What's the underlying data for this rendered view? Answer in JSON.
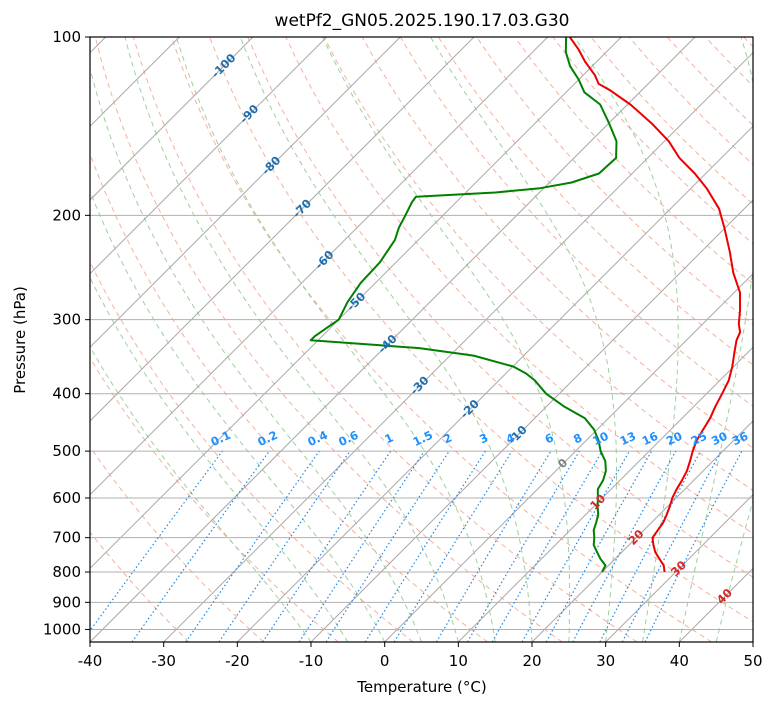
{
  "chart_data": {
    "type": "line",
    "title": "wetPf2_GN05.2025.190.17.03.G30",
    "xlabel": "Temperature (°C)",
    "ylabel": "Pressure (hPa)",
    "xlim": [
      -40,
      50
    ],
    "ylim": [
      1050,
      100
    ],
    "yscale": "log",
    "skew": "skew-T log-p (isotherms at 45°)",
    "grid": true,
    "x_ticks": [
      "-40",
      "-30",
      "-20",
      "-10",
      "0",
      "10",
      "20",
      "30",
      "40",
      "50"
    ],
    "y_ticks": [
      "100",
      "200",
      "300",
      "400",
      "500",
      "600",
      "700",
      "800",
      "900",
      "1000"
    ],
    "series": [
      {
        "color": "#ee0000",
        "points": [
          [
            800,
            28.5
          ],
          [
            780,
            27.5
          ],
          [
            760,
            26.0
          ],
          [
            740,
            24.5
          ],
          [
            720,
            23.3
          ],
          [
            700,
            22.2
          ],
          [
            680,
            21.9
          ],
          [
            660,
            21.6
          ],
          [
            640,
            21.0
          ],
          [
            620,
            20.3
          ],
          [
            600,
            19.5
          ],
          [
            580,
            18.9
          ],
          [
            560,
            18.4
          ],
          [
            540,
            17.8
          ],
          [
            520,
            16.9
          ],
          [
            500,
            15.9
          ],
          [
            480,
            15.0
          ],
          [
            460,
            14.4
          ],
          [
            440,
            13.8
          ],
          [
            420,
            12.9
          ],
          [
            400,
            12.1
          ],
          [
            380,
            11.2
          ],
          [
            360,
            9.8
          ],
          [
            340,
            8.1
          ],
          [
            325,
            6.8
          ],
          [
            315,
            6.2
          ],
          [
            305,
            4.9
          ],
          [
            290,
            3.3
          ],
          [
            270,
            0.8
          ],
          [
            250,
            -2.8
          ],
          [
            230,
            -6.2
          ],
          [
            210,
            -10.1
          ],
          [
            195,
            -13.4
          ],
          [
            180,
            -17.9
          ],
          [
            170,
            -21.5
          ],
          [
            160,
            -25.7
          ],
          [
            150,
            -29.4
          ],
          [
            140,
            -34.1
          ],
          [
            130,
            -39.6
          ],
          [
            123,
            -44.3
          ],
          [
            120,
            -46.7
          ],
          [
            116,
            -48.4
          ],
          [
            110,
            -51.6
          ],
          [
            105,
            -54.1
          ],
          [
            100,
            -57.0
          ]
        ]
      },
      {
        "color": "#008000",
        "points": [
          [
            800,
            20.0
          ],
          [
            780,
            19.6
          ],
          [
            760,
            18.0
          ],
          [
            740,
            16.6
          ],
          [
            720,
            15.2
          ],
          [
            700,
            14.3
          ],
          [
            680,
            13.2
          ],
          [
            660,
            12.5
          ],
          [
            640,
            11.7
          ],
          [
            620,
            10.5
          ],
          [
            600,
            9.4
          ],
          [
            580,
            8.2
          ],
          [
            560,
            7.7
          ],
          [
            540,
            6.8
          ],
          [
            520,
            5.4
          ],
          [
            500,
            3.4
          ],
          [
            480,
            1.7
          ],
          [
            460,
            -0.4
          ],
          [
            440,
            -3.2
          ],
          [
            420,
            -7.7
          ],
          [
            400,
            -11.8
          ],
          [
            380,
            -15.1
          ],
          [
            370,
            -17.2
          ],
          [
            360,
            -19.9
          ],
          [
            345,
            -26.8
          ],
          [
            335,
            -35.2
          ],
          [
            325,
            -51.0
          ],
          [
            320,
            -51.0
          ],
          [
            310,
            -50.5
          ],
          [
            300,
            -50.0
          ],
          [
            280,
            -51.2
          ],
          [
            260,
            -52.0
          ],
          [
            240,
            -52.2
          ],
          [
            220,
            -53.2
          ],
          [
            210,
            -54.3
          ],
          [
            200,
            -55.1
          ],
          [
            190,
            -56.0
          ],
          [
            186,
            -56.2
          ],
          [
            183,
            -46.0
          ],
          [
            180,
            -40.5
          ],
          [
            176,
            -37.0
          ],
          [
            170,
            -34.5
          ],
          [
            160,
            -34.3
          ],
          [
            150,
            -36.5
          ],
          [
            140,
            -39.9
          ],
          [
            130,
            -43.7
          ],
          [
            124,
            -47.5
          ],
          [
            118,
            -50.0
          ],
          [
            112,
            -53.0
          ],
          [
            106,
            -55.5
          ],
          [
            100,
            -57.5
          ]
        ]
      }
    ],
    "isotherm_labels": {
      "values": [
        "-100",
        "-90",
        "-80",
        "-70",
        "-60",
        "-50",
        "-40",
        "-30",
        "-20",
        "-10",
        "0",
        "10",
        "20",
        "30",
        "40"
      ],
      "color_cold": "#1f6fae",
      "color_zero": "#808080",
      "color_warm": "#d62728"
    },
    "mixing_ratio_labels": {
      "values": [
        "0.1",
        "0.2",
        "0.4",
        "0.6",
        "1",
        "1.5",
        "2",
        "3",
        "4",
        "6",
        "8",
        "10",
        "13",
        "16",
        "20",
        "25",
        "30",
        "36"
      ],
      "color": "#1e90ff"
    },
    "colors": {
      "isotherm": "#a8a8a8",
      "isobar": "#b0b0b0",
      "dry_adiabat": "#f4b19c",
      "moist_adiabat": "#9ed09e",
      "mixing_ratio": "#1e88e5",
      "frame": "#000000"
    }
  }
}
